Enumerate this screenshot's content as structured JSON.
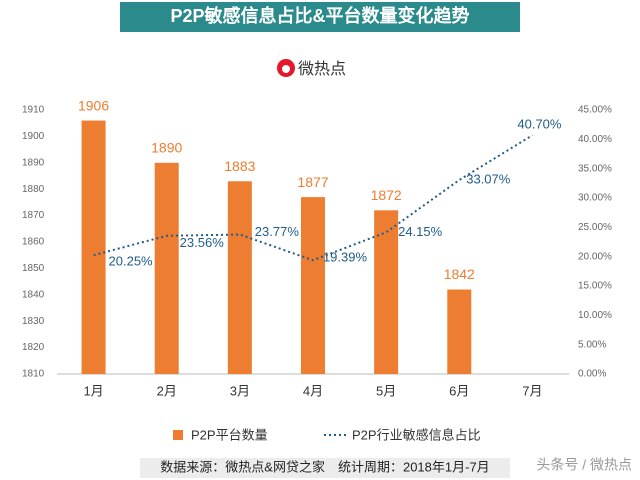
{
  "logo_text": "微热点",
  "footer": {
    "source": "数据来源：微热点&网贷之家　统计周期：2018年1月-7月",
    "watermark": "头条号 / 微热点"
  },
  "chart_data": {
    "type": "bar",
    "title": "P2P敏感信息占比&平台数量变化趋势",
    "categories": [
      "1月",
      "2月",
      "3月",
      "4月",
      "5月",
      "6月",
      "7月"
    ],
    "series": [
      {
        "name": "P2P平台数量",
        "type": "bar",
        "color": "#ed7d31",
        "values": [
          1906,
          1890,
          1883,
          1877,
          1872,
          1842,
          null
        ]
      },
      {
        "name": "P2P行业敏感信息占比",
        "type": "line",
        "axis": "y2",
        "color": "#1f5c8a",
        "values": [
          20.25,
          23.56,
          23.77,
          19.39,
          24.15,
          33.07,
          40.7
        ],
        "value_labels": [
          "20.25%",
          "23.56%",
          "23.77%",
          "19.39%",
          "24.15%",
          "33.07%",
          "40.70%"
        ]
      }
    ],
    "ylim": [
      1810,
      1910
    ],
    "yticks": [
      1810,
      1820,
      1830,
      1840,
      1850,
      1860,
      1870,
      1880,
      1890,
      1900,
      1910
    ],
    "y2lim": [
      0,
      45
    ],
    "y2ticks": [
      {
        "value": 0,
        "label": "0.00%"
      },
      {
        "value": 5,
        "label": "5.00%"
      },
      {
        "value": 10,
        "label": "10.00%"
      },
      {
        "value": 15,
        "label": "15.00%"
      },
      {
        "value": 20,
        "label": "20.00%"
      },
      {
        "value": 25,
        "label": "25.00%"
      },
      {
        "value": 30,
        "label": "30.00%"
      },
      {
        "value": 35,
        "label": "35.00%"
      },
      {
        "value": 40,
        "label": "40.00%"
      },
      {
        "value": 45,
        "label": "45.00%"
      }
    ],
    "legend": "bottom"
  }
}
